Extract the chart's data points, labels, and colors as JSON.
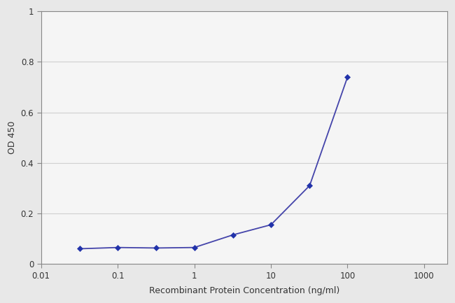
{
  "x_pts": [
    0.032,
    0.1,
    0.32,
    1.0,
    3.2,
    10.0,
    32.0,
    100.0
  ],
  "y_pts": [
    0.06,
    0.065,
    0.063,
    0.065,
    0.115,
    0.155,
    0.31,
    0.74
  ],
  "line_color": "#4444aa",
  "marker_color": "#2233aa",
  "xlabel": "Recombinant Protein Concentration (ng/ml)",
  "ylabel": "OD 450",
  "ylim": [
    0,
    1.0
  ],
  "yticks": [
    0,
    0.2,
    0.4,
    0.6,
    0.8,
    1
  ],
  "ytick_labels": [
    "0",
    "0.2",
    "0.4",
    "0.6",
    "0.8",
    "1"
  ],
  "xtick_values": [
    0.01,
    0.1,
    1,
    10,
    100,
    1000
  ],
  "xtick_labels": [
    "0.01",
    "0.1",
    "1",
    "10",
    "100",
    "1000"
  ],
  "xlim": [
    0.02,
    2000
  ],
  "background_color": "#e8e8e8",
  "plot_bg_color": "#f5f5f5",
  "grid_color": "#d0d0d0",
  "spine_color": "#888888",
  "label_fontsize": 9,
  "tick_fontsize": 8.5
}
